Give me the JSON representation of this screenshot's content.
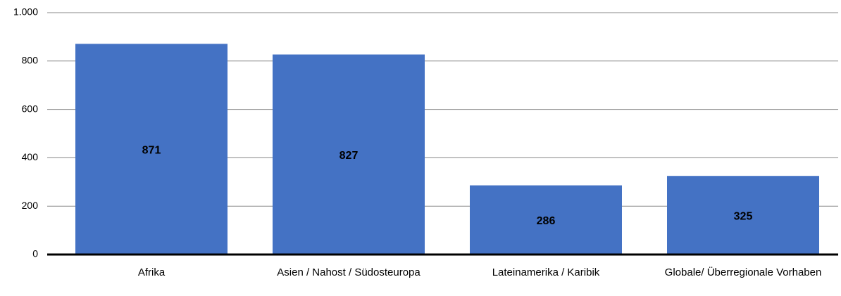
{
  "chart_data": {
    "type": "bar",
    "categories": [
      "Afrika",
      "Asien / Nahost / Südosteuropa",
      "Lateinamerika / Karibik",
      "Globale/ Überregionale Vorhaben"
    ],
    "values": [
      871,
      827,
      286,
      325
    ],
    "color": "#4472c4",
    "ylim": [
      0,
      1000
    ],
    "yticks": [
      0,
      200,
      400,
      600,
      800,
      {
        "value": 1000,
        "label": "1.000"
      }
    ],
    "grid": true
  }
}
